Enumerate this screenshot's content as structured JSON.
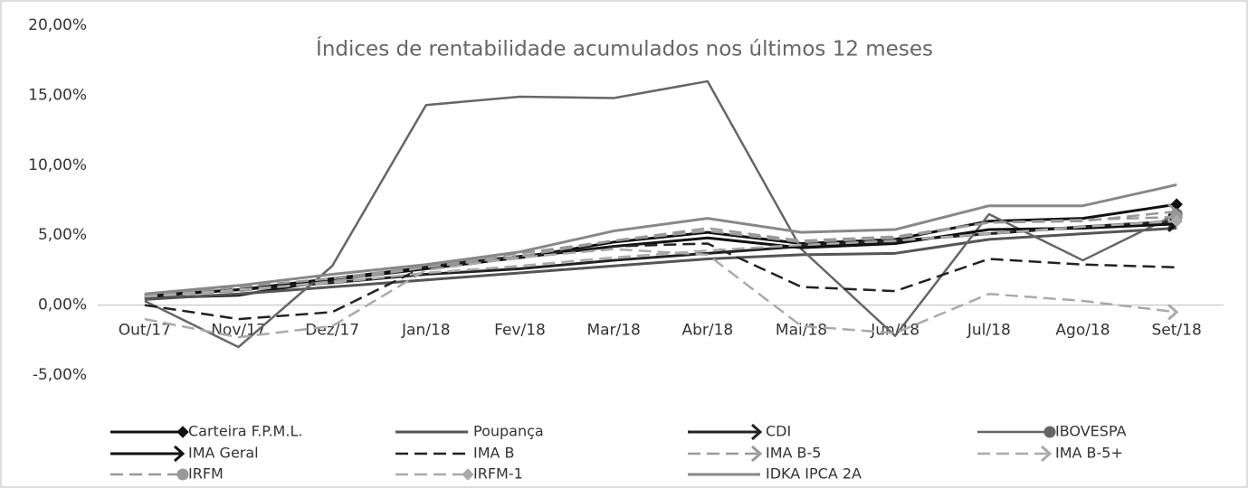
{
  "chart_data": {
    "type": "line",
    "title": "Índices de rentabilidade acumulados nos últimos 12 meses",
    "categories": [
      "Out/17",
      "Nov/17",
      "Dez/17",
      "Jan/18",
      "Fev/18",
      "Mar/18",
      "Abr/18",
      "Mai/18",
      "Jun/18",
      "Jul/18",
      "Ago/18",
      "Set/18"
    ],
    "ylim": [
      -5,
      20
    ],
    "yticks": [
      {
        "value": -5,
        "label": "-5,00%"
      },
      {
        "value": 0,
        "label": "0,00%"
      },
      {
        "value": 5,
        "label": "5,00%"
      },
      {
        "value": 10,
        "label": "10,00%"
      },
      {
        "value": 15,
        "label": "15,00%"
      },
      {
        "value": 20,
        "label": "20,00%"
      }
    ],
    "grid": false,
    "legend": "bottom",
    "series": [
      {
        "name": "Carteira F.P.M.L.",
        "color": "#111111",
        "width": 3,
        "dash": "solid",
        "marker": "diamond",
        "values": [
          0.5,
          0.7,
          1.8,
          2.6,
          3.4,
          4.5,
          5.2,
          4.4,
          4.7,
          6.0,
          6.2,
          7.2
        ]
      },
      {
        "name": "Poupança",
        "color": "#555555",
        "width": 3,
        "dash": "solid",
        "marker": "none",
        "values": [
          0.4,
          0.8,
          1.3,
          1.8,
          2.3,
          2.8,
          3.3,
          3.6,
          3.7,
          4.7,
          5.1,
          5.5
        ]
      },
      {
        "name": "CDI",
        "color": "#222222",
        "width": 3,
        "dash": "solid",
        "marker": "arrow",
        "values": [
          0.6,
          1.1,
          1.6,
          2.2,
          2.6,
          3.2,
          3.7,
          4.2,
          4.6,
          5.1,
          5.6,
          6.0
        ]
      },
      {
        "name": "IBOVESPA",
        "color": "#666666",
        "width": 2.5,
        "dash": "solid",
        "marker": "circle",
        "values": [
          0.3,
          -3.0,
          2.8,
          14.3,
          14.9,
          14.8,
          16.0,
          4.0,
          -2.2,
          6.5,
          3.2,
          6.5
        ]
      },
      {
        "name": "IMA Geral",
        "color": "#111111",
        "width": 3,
        "dash": "solid",
        "marker": "arrow",
        "values": [
          0.7,
          1.1,
          1.9,
          2.7,
          3.4,
          4.2,
          4.8,
          4.1,
          4.4,
          5.4,
          5.5,
          5.8
        ]
      },
      {
        "name": "IMA B",
        "color": "#222222",
        "width": 2.5,
        "dash": "dashed",
        "marker": "none",
        "values": [
          0.0,
          -1.0,
          -0.5,
          2.8,
          3.5,
          4.2,
          4.4,
          1.3,
          1.0,
          3.3,
          2.9,
          2.7
        ]
      },
      {
        "name": "IMA B-5",
        "color": "#999999",
        "width": 2.5,
        "dash": "dashed",
        "marker": "arrow",
        "values": [
          0.7,
          1.3,
          1.9,
          2.8,
          3.7,
          4.6,
          5.3,
          4.5,
          4.8,
          5.9,
          6.0,
          6.7
        ]
      },
      {
        "name": "IMA B-5+",
        "color": "#aaaaaa",
        "width": 2.5,
        "dash": "dashed",
        "marker": "arrow",
        "values": [
          -1.0,
          -2.3,
          -1.5,
          2.5,
          3.4,
          4.0,
          3.6,
          -1.5,
          -2.0,
          0.8,
          0.3,
          -0.5
        ]
      },
      {
        "name": "IRFM",
        "color": "#999999",
        "width": 2.5,
        "dash": "dashed",
        "marker": "circle",
        "values": [
          0.6,
          1.0,
          1.7,
          2.7,
          3.5,
          4.6,
          5.5,
          4.6,
          4.9,
          5.9,
          6.1,
          6.3
        ]
      },
      {
        "name": "IRFM-1",
        "color": "#aaaaaa",
        "width": 2.5,
        "dash": "dashed",
        "marker": "diamond",
        "values": [
          0.6,
          1.1,
          1.6,
          2.3,
          2.8,
          3.4,
          3.9,
          4.3,
          4.6,
          5.1,
          5.6,
          6.0
        ]
      },
      {
        "name": "IDKA IPCA 2A",
        "color": "#888888",
        "width": 3,
        "dash": "solid",
        "marker": "none",
        "values": [
          0.8,
          1.4,
          2.2,
          2.9,
          3.8,
          5.3,
          6.2,
          5.2,
          5.4,
          7.1,
          7.1,
          8.6
        ]
      }
    ]
  }
}
